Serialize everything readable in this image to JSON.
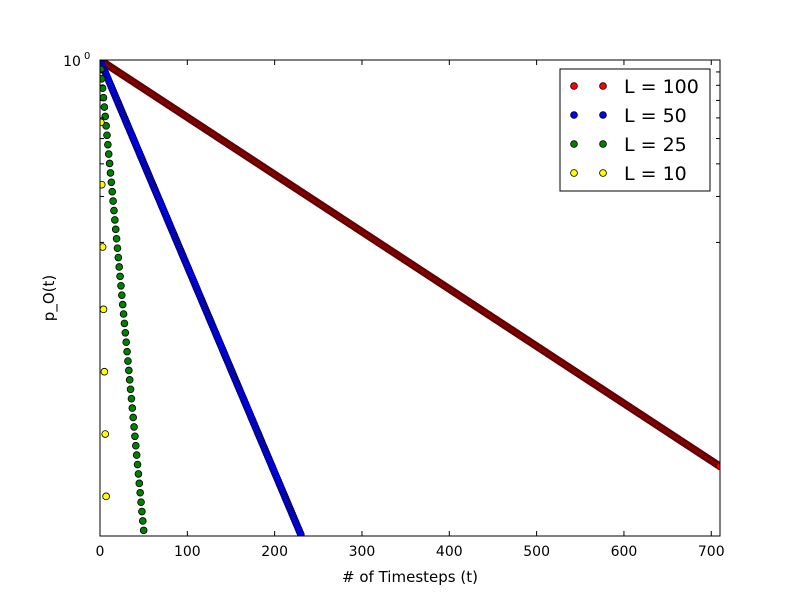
{
  "chart_data": {
    "type": "scatter",
    "title": "",
    "xlabel": "# of Timesteps (t)",
    "ylabel": "p_O(t)",
    "xlim": [
      0,
      710
    ],
    "xticks": [
      0,
      100,
      200,
      300,
      400,
      500,
      600,
      700
    ],
    "xtick_labels": [
      "0",
      "100",
      "200",
      "300",
      "400",
      "500",
      "600",
      "700"
    ],
    "yscale": "log",
    "ylim": [
      0.015,
      1.0
    ],
    "ytick_labels": [
      {
        "base": "10",
        "exp": "0"
      }
    ],
    "grid": false,
    "legend_position": "top-right",
    "marker": "circle",
    "series": [
      {
        "name": "L = 100",
        "color": "#ff0000",
        "decay_per_step": 0.00505,
        "x_max": 710
      },
      {
        "name": "L = 50",
        "color": "#0000ff",
        "decay_per_step": 0.0182,
        "x_max": 230
      },
      {
        "name": "L = 25",
        "color": "#008000",
        "decay_per_step": 0.083,
        "x_max": 50
      },
      {
        "name": "L = 10",
        "color": "#ffff00",
        "decay_per_step": 0.55,
        "x_max": 7
      }
    ]
  }
}
